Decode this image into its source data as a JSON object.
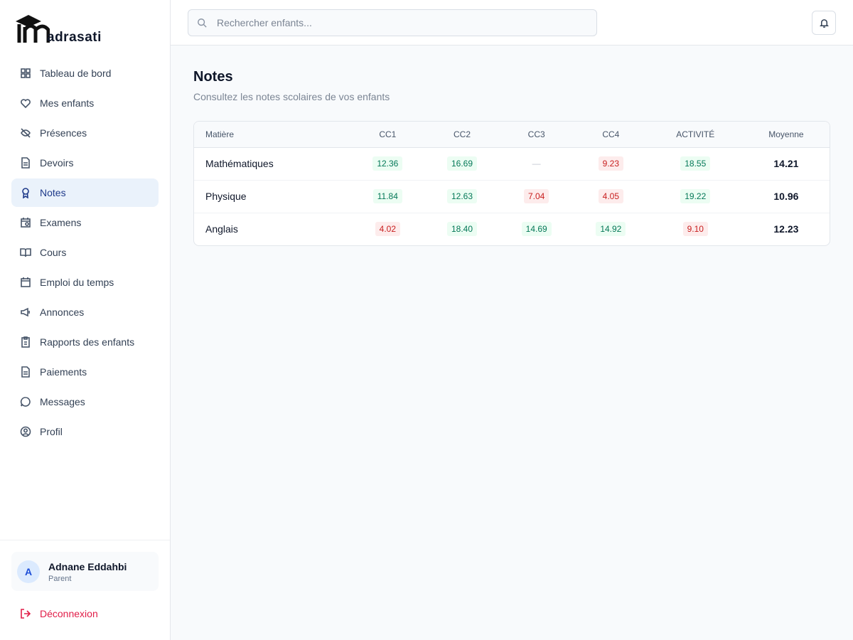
{
  "sidebar": {
    "logo": "adrasati",
    "nav": [
      "Tableau de bord",
      "Mes enfants",
      "Présences",
      "Devoirs",
      "Notes",
      "Examens",
      "Cours",
      "Emploi du temps",
      "Annonces",
      "Rapports des enfants",
      "Paiements",
      "Messages",
      "Profil"
    ],
    "active": "Notes",
    "user": {
      "initial": "A",
      "name": "Adnane Eddahbi",
      "role": "Parent"
    },
    "logout": "Déconnexion"
  },
  "header": {
    "search_placeholder": "Rechercher enfants..."
  },
  "page": {
    "title": "Notes",
    "subtitle": "Consultez les notes scolaires de vos enfants"
  },
  "table": {
    "columns": [
      "Matière",
      "CC1",
      "CC2",
      "CC3",
      "CC4",
      "ACTIVITÉ",
      "Moyenne"
    ],
    "rows": [
      {
        "subject": "Mathématiques",
        "grades": [
          {
            "text": "12.36",
            "tone": "green"
          },
          {
            "text": "16.69",
            "tone": "green"
          },
          {
            "text": "—",
            "tone": "none"
          },
          {
            "text": "9.23",
            "tone": "red"
          },
          {
            "text": "18.55",
            "tone": "green"
          }
        ],
        "average": "14.21"
      },
      {
        "subject": "Physique",
        "grades": [
          {
            "text": "11.84",
            "tone": "green"
          },
          {
            "text": "12.63",
            "tone": "green"
          },
          {
            "text": "7.04",
            "tone": "red"
          },
          {
            "text": "4.05",
            "tone": "red"
          },
          {
            "text": "19.22",
            "tone": "green"
          }
        ],
        "average": "10.96"
      },
      {
        "subject": "Anglais",
        "grades": [
          {
            "text": "4.02",
            "tone": "red"
          },
          {
            "text": "18.40",
            "tone": "green"
          },
          {
            "text": "14.69",
            "tone": "green"
          },
          {
            "text": "14.92",
            "tone": "green"
          },
          {
            "text": "9.10",
            "tone": "red"
          }
        ],
        "average": "12.23"
      }
    ]
  }
}
